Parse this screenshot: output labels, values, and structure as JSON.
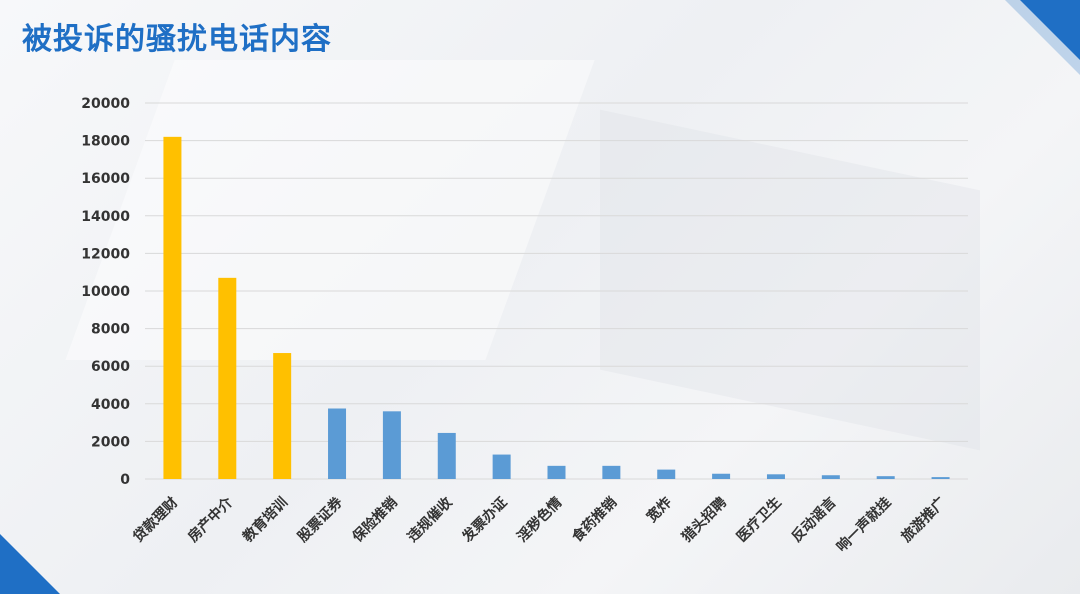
{
  "title": "被投诉的骚扰电话内容",
  "colors": {
    "highlight": "#FFC000",
    "normal": "#5B9BD5",
    "title": "#1F6FC5",
    "grid": "#D9D9D9"
  },
  "chart_data": {
    "type": "bar",
    "categories": [
      "贷款理财",
      "房产中介",
      "教育培训",
      "股票证券",
      "保险推销",
      "违规催收",
      "发票办证",
      "淫秽色情",
      "食药推销",
      "宽炸",
      "猎头招聘",
      "医疗卫生",
      "反动谣言",
      "响一声就挂",
      "旅游推广"
    ],
    "values": [
      18200,
      10700,
      6700,
      3750,
      3600,
      2450,
      1300,
      700,
      700,
      500,
      280,
      250,
      200,
      150,
      100
    ],
    "highlight_count": 3,
    "title": "",
    "xlabel": "",
    "ylabel": "",
    "ylim": [
      0,
      20000
    ],
    "yticks": [
      0,
      2000,
      4000,
      6000,
      8000,
      10000,
      12000,
      14000,
      16000,
      18000,
      20000
    ],
    "grid": true,
    "legend": "none"
  }
}
